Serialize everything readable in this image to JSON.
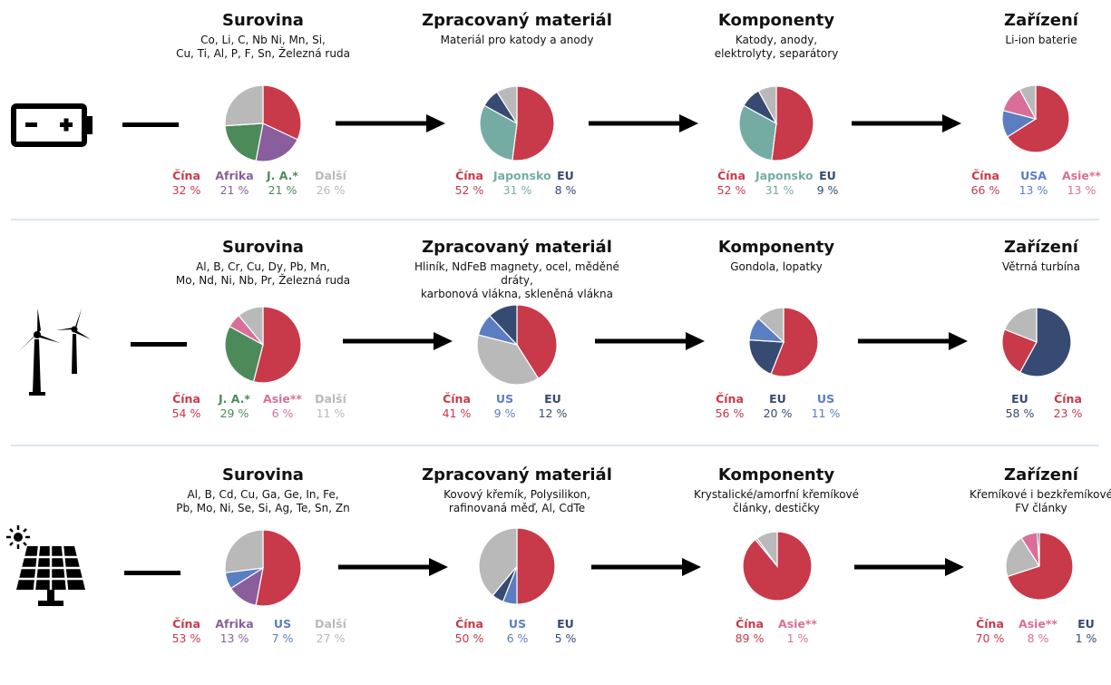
{
  "colors": {
    "china": "#c8394a",
    "africa": "#8a5e9c",
    "ja": "#4d8a5a",
    "other": "#b9b9b9",
    "japan": "#74aca4",
    "eu": "#364a72",
    "usa": "#5b7ec2",
    "asia": "#d96f99",
    "separator": "#dce6ee"
  },
  "rows": [
    {
      "icon": "battery-icon",
      "stages": [
        {
          "title": "Surovina",
          "subtitle": "Co, Li, C, Nb Ni, Mn, Si,\nCu, Ti, Al, P, F, Sn, Železná ruda",
          "chart_data": {
            "type": "pie",
            "series": [
              {
                "name": "Čína",
                "value": 32,
                "label": "32 %",
                "color": "china",
                "legend": true
              },
              {
                "name": "Afrika",
                "value": 21,
                "label": "21 %",
                "color": "africa",
                "legend": true
              },
              {
                "name": "J. A.*",
                "value": 21,
                "label": "21 %",
                "color": "ja",
                "legend": true
              },
              {
                "name": "Další",
                "value": 26,
                "label": "26 %",
                "color": "other",
                "legend": true
              }
            ]
          }
        },
        {
          "title": "Zpracovaný materiál",
          "subtitle": "Materiál pro katody a anody",
          "chart_data": {
            "type": "pie",
            "series": [
              {
                "name": "Čína",
                "value": 52,
                "label": "52 %",
                "color": "china",
                "legend": true
              },
              {
                "name": "Japonsko",
                "value": 31,
                "label": "31 %",
                "color": "japan",
                "legend": true
              },
              {
                "name": "EU",
                "value": 8,
                "label": "8 %",
                "color": "eu",
                "legend": true
              },
              {
                "name": "",
                "value": 9,
                "label": "",
                "color": "other",
                "legend": false
              }
            ]
          }
        },
        {
          "title": "Komponenty",
          "subtitle": "Katody, anody,\nelektrolyty, separátory",
          "chart_data": {
            "type": "pie",
            "series": [
              {
                "name": "Čína",
                "value": 52,
                "label": "52 %",
                "color": "china",
                "legend": true
              },
              {
                "name": "Japonsko",
                "value": 31,
                "label": "31 %",
                "color": "japan",
                "legend": true
              },
              {
                "name": "EU",
                "value": 9,
                "label": "9 %",
                "color": "eu",
                "legend": true
              },
              {
                "name": "",
                "value": 8,
                "label": "",
                "color": "other",
                "legend": false
              }
            ]
          }
        },
        {
          "title": "Zařízení",
          "subtitle": "Li-ion baterie",
          "chart_data": {
            "type": "pie",
            "series": [
              {
                "name": "Čína",
                "value": 66,
                "label": "66 %",
                "color": "china",
                "legend": true
              },
              {
                "name": "USA",
                "value": 13,
                "label": "13 %",
                "color": "usa",
                "legend": true
              },
              {
                "name": "Asie**",
                "value": 13,
                "label": "13 %",
                "color": "asia",
                "legend": true
              },
              {
                "name": "",
                "value": 8,
                "label": "",
                "color": "other",
                "legend": false
              }
            ]
          }
        }
      ]
    },
    {
      "icon": "wind-turbine-icon",
      "stages": [
        {
          "title": "Surovina",
          "subtitle": "Al, B, Cr, Cu, Dy, Pb, Mn,\nMo, Nd, Ni, Nb, Pr, Železná ruda",
          "chart_data": {
            "type": "pie",
            "series": [
              {
                "name": "Čína",
                "value": 54,
                "label": "54 %",
                "color": "china",
                "legend": true
              },
              {
                "name": "J. A.*",
                "value": 29,
                "label": "29 %",
                "color": "ja",
                "legend": true
              },
              {
                "name": "Asie**",
                "value": 6,
                "label": "6 %",
                "color": "asia",
                "legend": true
              },
              {
                "name": "Další",
                "value": 11,
                "label": "11 %",
                "color": "other",
                "legend": true
              }
            ]
          }
        },
        {
          "title": "Zpracovaný materiál",
          "subtitle": "Hliník, NdFeB magnety, ocel, měděné dráty,\nkarbonová vlákna, skleněná vlákna",
          "chart_data": {
            "type": "pie",
            "series": [
              {
                "name": "Čína",
                "value": 41,
                "label": "41 %",
                "color": "china",
                "legend": true
              },
              {
                "name": "",
                "value": 38,
                "label": "",
                "color": "other",
                "legend": false
              },
              {
                "name": "US",
                "value": 9,
                "label": "9 %",
                "color": "usa",
                "legend": true
              },
              {
                "name": "EU",
                "value": 12,
                "label": "12 %",
                "color": "eu",
                "legend": true
              }
            ]
          }
        },
        {
          "title": "Komponenty",
          "subtitle": "Gondola, lopatky",
          "chart_data": {
            "type": "pie",
            "series": [
              {
                "name": "Čína",
                "value": 56,
                "label": "56 %",
                "color": "china",
                "legend": true
              },
              {
                "name": "EU",
                "value": 20,
                "label": "20 %",
                "color": "eu",
                "legend": true
              },
              {
                "name": "US",
                "value": 11,
                "label": "11 %",
                "color": "usa",
                "legend": true
              },
              {
                "name": "",
                "value": 13,
                "label": "",
                "color": "other",
                "legend": false
              }
            ]
          }
        },
        {
          "title": "Zařízení",
          "subtitle": "Větrná turbína",
          "chart_data": {
            "type": "pie",
            "series": [
              {
                "name": "EU",
                "value": 58,
                "label": "58 %",
                "color": "eu",
                "legend": true
              },
              {
                "name": "Čína",
                "value": 23,
                "label": "23 %",
                "color": "china",
                "legend": true
              },
              {
                "name": "",
                "value": 19,
                "label": "",
                "color": "other",
                "legend": false
              }
            ]
          }
        }
      ]
    },
    {
      "icon": "solar-panel-icon",
      "stages": [
        {
          "title": "Surovina",
          "subtitle": "Al, B, Cd, Cu, Ga, Ge, In, Fe,\nPb, Mo, Ni, Se, Si, Ag, Te, Sn, Zn",
          "chart_data": {
            "type": "pie",
            "series": [
              {
                "name": "Čína",
                "value": 53,
                "label": "53 %",
                "color": "china",
                "legend": true
              },
              {
                "name": "Afrika",
                "value": 13,
                "label": "13 %",
                "color": "africa",
                "legend": true
              },
              {
                "name": "US",
                "value": 7,
                "label": "7 %",
                "color": "usa",
                "legend": true
              },
              {
                "name": "Další",
                "value": 27,
                "label": "27 %",
                "color": "other",
                "legend": true
              }
            ]
          }
        },
        {
          "title": "Zpracovaný materiál",
          "subtitle": "Kovový křemík, Polysilikon,\nrafinovaná měď, Al, CdTe",
          "chart_data": {
            "type": "pie",
            "series": [
              {
                "name": "Čína",
                "value": 50,
                "label": "50 %",
                "color": "china",
                "legend": true
              },
              {
                "name": "US",
                "value": 6,
                "label": "6 %",
                "color": "usa",
                "legend": true
              },
              {
                "name": "EU",
                "value": 5,
                "label": "5 %",
                "color": "eu",
                "legend": true
              },
              {
                "name": "",
                "value": 39,
                "label": "",
                "color": "other",
                "legend": false
              }
            ]
          }
        },
        {
          "title": "Komponenty",
          "subtitle": "Krystalické/amorfní křemíkové\nčlánky, destičky",
          "chart_data": {
            "type": "pie",
            "series": [
              {
                "name": "Čína",
                "value": 89,
                "label": "89 %",
                "color": "china",
                "legend": true
              },
              {
                "name": "Asie**",
                "value": 1,
                "label": "1 %",
                "color": "asia",
                "legend": true
              },
              {
                "name": "",
                "value": 10,
                "label": "",
                "color": "other",
                "legend": false
              }
            ]
          }
        },
        {
          "title": "Zařízení",
          "subtitle": "Křemíkové i bezkřemíkové\nFV články",
          "chart_data": {
            "type": "pie",
            "series": [
              {
                "name": "Čína",
                "value": 70,
                "label": "70 %",
                "color": "china",
                "legend": true
              },
              {
                "name": "",
                "value": 21,
                "label": "",
                "color": "other",
                "legend": false
              },
              {
                "name": "Asie**",
                "value": 8,
                "label": "8 %",
                "color": "asia",
                "legend": true
              },
              {
                "name": "EU",
                "value": 1,
                "label": "1 %",
                "color": "eu",
                "legend": true
              }
            ]
          }
        }
      ]
    }
  ]
}
